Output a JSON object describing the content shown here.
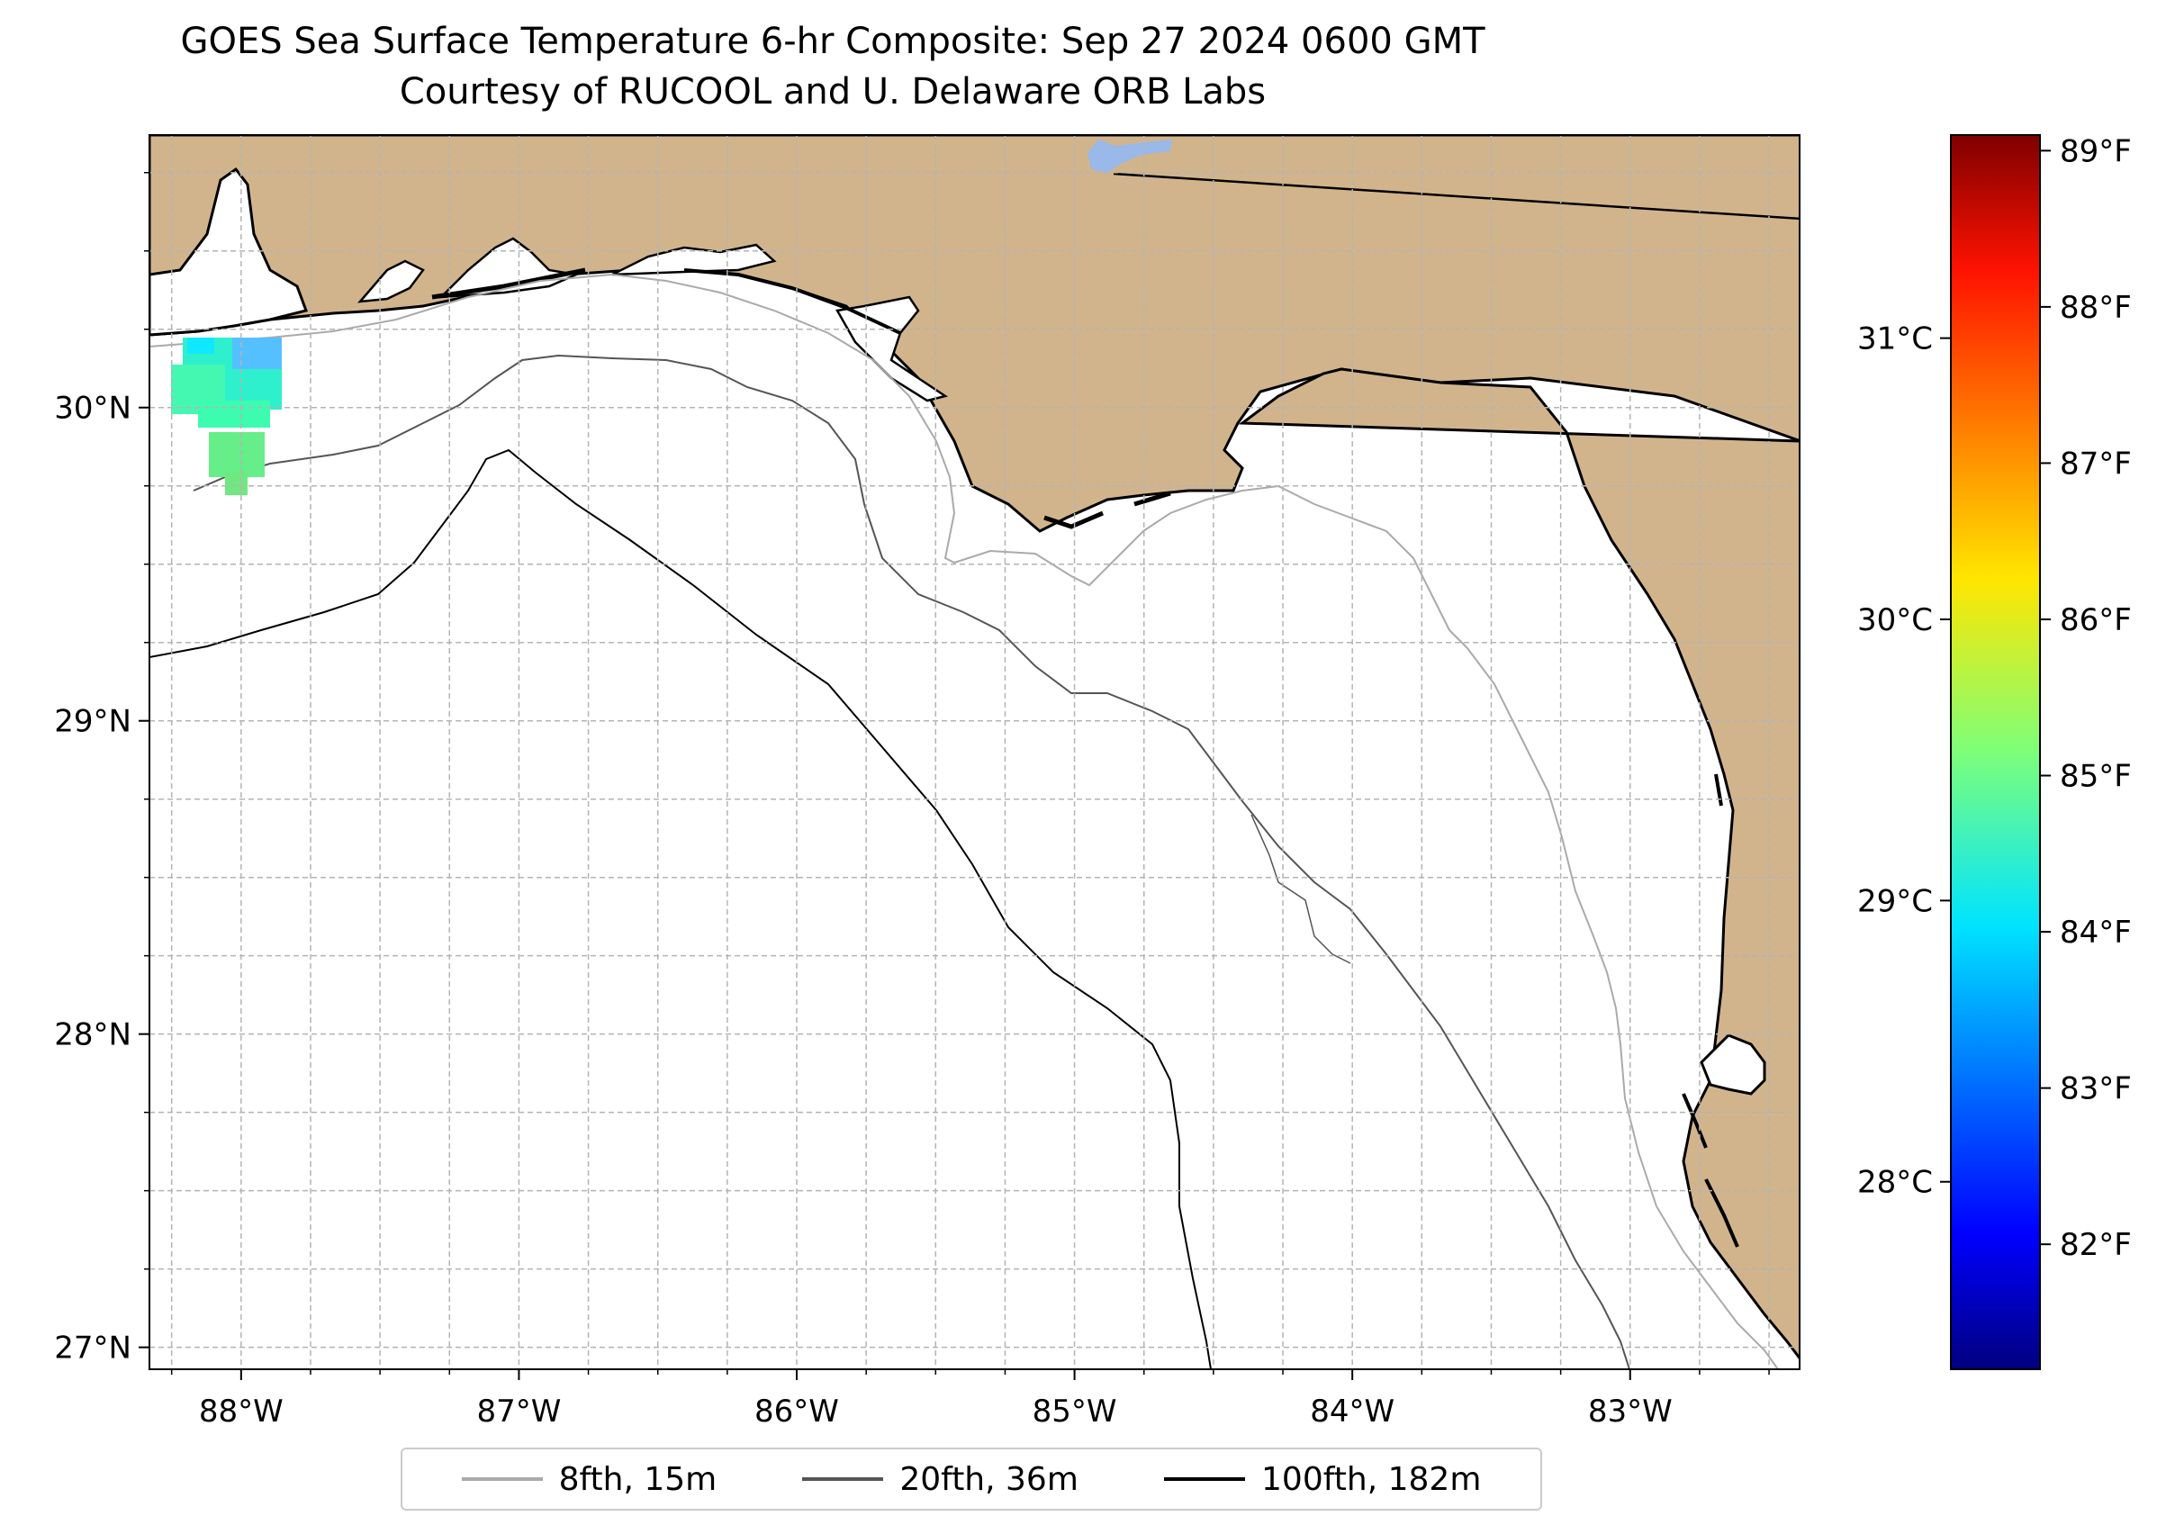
{
  "title": {
    "line1": "GOES Sea Surface Temperature 6-hr Composite: Sep 27 2024 0600 GMT",
    "line2": "Courtesy of RUCOOL and U. Delaware ORB Labs"
  },
  "map": {
    "land_color": "#d2b48c",
    "water_color": "#ffffff",
    "lon_range": [
      -88.33,
      -82.39
    ],
    "lat_range": [
      26.93,
      30.87
    ],
    "x_ticks": [
      "88°W",
      "87°W",
      "86°W",
      "85°W",
      "84°W",
      "83°W"
    ],
    "y_ticks": [
      "27°N",
      "28°N",
      "29°N",
      "30°N"
    ],
    "gridlines": true,
    "sst_patch_colors": [
      "#22f0d4",
      "#3cfcb0",
      "#66ee88",
      "#55b8ff"
    ]
  },
  "colorbar": {
    "colormap": "jet",
    "range_f": [
      81.2,
      89.1
    ],
    "f_ticks": [
      "82°F",
      "83°F",
      "84°F",
      "85°F",
      "86°F",
      "87°F",
      "88°F",
      "89°F"
    ],
    "c_ticks": [
      "28°C",
      "29°C",
      "30°C",
      "31°C"
    ]
  },
  "legend": {
    "items": [
      {
        "label": "8fth, 15m",
        "color": "#aaaaaa"
      },
      {
        "label": "20fth, 36m",
        "color": "#555555"
      },
      {
        "label": "100fth, 182m",
        "color": "#000000"
      }
    ]
  }
}
